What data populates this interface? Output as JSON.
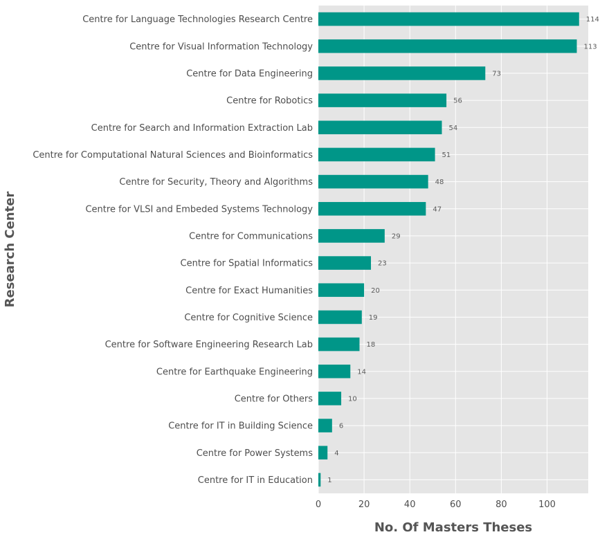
{
  "chart_data": {
    "type": "bar",
    "orientation": "horizontal",
    "xlabel": "No. Of Masters Theses",
    "ylabel": "Research Center",
    "xlim": [
      0,
      118
    ],
    "xticks": [
      0,
      20,
      40,
      60,
      80,
      100
    ],
    "grid": true,
    "categories": [
      "Centre for Language Technologies Research Centre",
      "Centre for Visual Information Technology",
      "Centre for Data Engineering",
      "Centre for Robotics",
      "Centre for Search and Information Extraction Lab",
      "Centre for Computational Natural Sciences and Bioinformatics",
      "Centre for Security, Theory and Algorithms",
      "Centre for VLSI and Embeded Systems Technology",
      "Centre for Communications",
      "Centre for Spatial Informatics",
      "Centre for Exact Humanities",
      "Centre for Cognitive Science",
      "Centre for Software Engineering Research Lab",
      "Centre for Earthquake Engineering",
      "Centre for Others",
      "Centre for IT in Building Science",
      "Centre for Power Systems",
      "Centre for IT in Education"
    ],
    "values": [
      114,
      113,
      73,
      56,
      54,
      51,
      48,
      47,
      29,
      23,
      20,
      19,
      18,
      14,
      10,
      6,
      4,
      1
    ],
    "colors": {
      "bar": "#009688",
      "plot_background": "#e5e5e5",
      "grid": "#ffffff"
    }
  }
}
